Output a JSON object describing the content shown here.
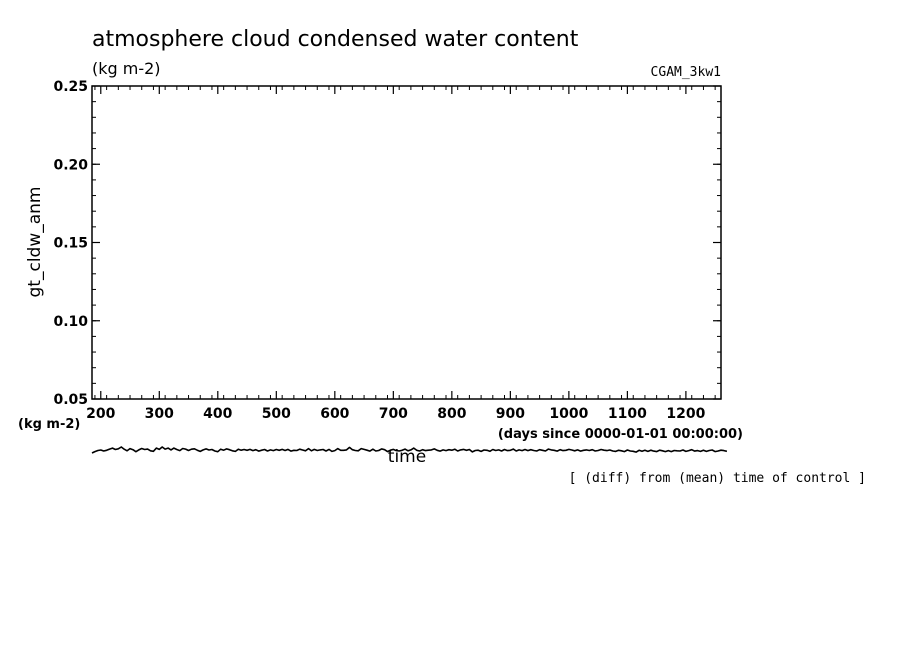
{
  "chart_data": {
    "type": "line",
    "title": "atmosphere cloud condensed water content",
    "subtitle": "(kg m-2)",
    "experiment_label": "CGAM_3kw1",
    "ylabel": "gt_cldw_anm",
    "yunit_label": "(kg m-2)",
    "xlabel": "time",
    "xunit_label": "(days since 0000-01-01 00:00:00)",
    "note": "[ (diff) from (mean) time of control ]",
    "xlim": [
      185,
      1260
    ],
    "ylim": [
      0.05,
      0.25
    ],
    "x_ticks": [
      200,
      300,
      400,
      500,
      600,
      700,
      800,
      900,
      1000,
      1100,
      1200
    ],
    "y_ticks": [
      "0.05",
      "0.10",
      "0.15",
      "0.20",
      "0.25"
    ],
    "grid": false,
    "series": [
      {
        "x_start": 185,
        "x_step": 5,
        "values": [
          0.0155,
          0.0164,
          0.0171,
          0.0174,
          0.0168,
          0.0172,
          0.018,
          0.0186,
          0.0177,
          0.0182,
          0.0193,
          0.0179,
          0.0169,
          0.0183,
          0.0176,
          0.0163,
          0.0175,
          0.0184,
          0.0177,
          0.018,
          0.0169,
          0.0166,
          0.0186,
          0.0178,
          0.0193,
          0.018,
          0.0186,
          0.0175,
          0.0186,
          0.0177,
          0.017,
          0.0184,
          0.018,
          0.0171,
          0.0179,
          0.0182,
          0.0173,
          0.0165,
          0.0175,
          0.0181,
          0.0174,
          0.0177,
          0.0168,
          0.0163,
          0.0179,
          0.0173,
          0.0181,
          0.0176,
          0.0169,
          0.0165,
          0.0179,
          0.0173,
          0.0177,
          0.0172,
          0.0178,
          0.017,
          0.0176,
          0.0167,
          0.0173,
          0.0177,
          0.0168,
          0.0175,
          0.017,
          0.0177,
          0.0172,
          0.0178,
          0.0171,
          0.0178,
          0.0167,
          0.0172,
          0.0171,
          0.0179,
          0.0174,
          0.0169,
          0.0183,
          0.0169,
          0.0178,
          0.0171,
          0.0175,
          0.0177,
          0.0168,
          0.0178,
          0.0165,
          0.017,
          0.0183,
          0.0172,
          0.0172,
          0.0175,
          0.0191,
          0.0176,
          0.0171,
          0.0169,
          0.0183,
          0.0178,
          0.0173,
          0.0167,
          0.0179,
          0.0168,
          0.0171,
          0.0181,
          0.0176,
          0.0164,
          0.0173,
          0.0178,
          0.017,
          0.0168,
          0.0172,
          0.018,
          0.0169,
          0.0175,
          0.0186,
          0.0172,
          0.0168,
          0.0176,
          0.017,
          0.0173,
          0.0175,
          0.0181,
          0.0172,
          0.0167,
          0.0175,
          0.017,
          0.0176,
          0.0173,
          0.0179,
          0.0168,
          0.0175,
          0.0178,
          0.0172,
          0.0177,
          0.0162,
          0.0171,
          0.0173,
          0.0165,
          0.0174,
          0.0172,
          0.0166,
          0.0177,
          0.0171,
          0.0175,
          0.0168,
          0.0177,
          0.017,
          0.0172,
          0.018,
          0.0168,
          0.0175,
          0.017,
          0.0177,
          0.017,
          0.0176,
          0.0171,
          0.0168,
          0.0176,
          0.0172,
          0.0168,
          0.018,
          0.0175,
          0.0172,
          0.0167,
          0.0176,
          0.017,
          0.0172,
          0.0178,
          0.0174,
          0.0169,
          0.0175,
          0.0167,
          0.0172,
          0.0175,
          0.0171,
          0.0176,
          0.0168,
          0.0171,
          0.0177,
          0.0173,
          0.017,
          0.0174,
          0.0168,
          0.0165,
          0.0172,
          0.0169,
          0.0164,
          0.0174,
          0.0168,
          0.0166,
          0.0161,
          0.0172,
          0.0166,
          0.0172,
          0.0165,
          0.0173,
          0.0167,
          0.0164,
          0.0173,
          0.0169,
          0.0164,
          0.017,
          0.0164,
          0.0171,
          0.0169,
          0.0168,
          0.0174,
          0.0165,
          0.017,
          0.0176,
          0.0167,
          0.017,
          0.0165,
          0.0173,
          0.0165,
          0.0171,
          0.0174,
          0.0164,
          0.0168,
          0.0173,
          0.017,
          0.0166
        ]
      }
    ]
  }
}
